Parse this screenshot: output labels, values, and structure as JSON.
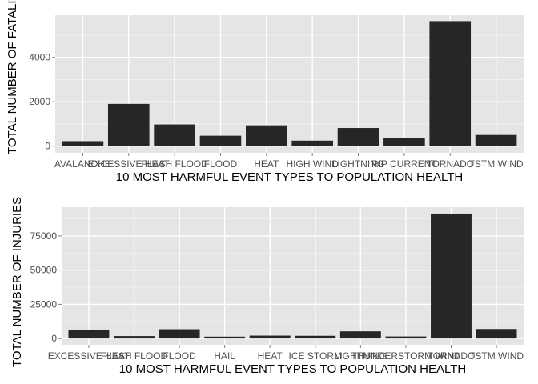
{
  "colors": {
    "panel": "#e5e5e5",
    "grid_major": "#ffffff",
    "grid_minor": "#f2f2f2",
    "bar": "#262626",
    "tick": "#7f7f7f"
  },
  "chart_data": [
    {
      "type": "bar",
      "title": "",
      "xlabel": "10 MOST HARMFUL EVENT TYPES TO POPULATION HEALTH",
      "ylabel": "TOTAL NUMBER OF FATALITIES",
      "categories": [
        "AVALANCHE",
        "EXCESSIVE HEAT",
        "FLASH FLOOD",
        "FLOOD",
        "HEAT",
        "HIGH WIND",
        "LIGHTNING",
        "RIP CURRENT",
        "TORNADO",
        "TSTM WIND"
      ],
      "values": [
        224,
        1903,
        978,
        470,
        937,
        248,
        816,
        368,
        5633,
        504
      ],
      "ylim": [
        -300,
        5900
      ],
      "yticks": [
        0,
        2000,
        4000
      ],
      "ytick_labels": [
        "0",
        "2000",
        "4000"
      ],
      "grid": true,
      "legend": "none"
    },
    {
      "type": "bar",
      "title": "",
      "xlabel": "10 MOST HARMFUL EVENT TYPES TO POPULATION HEALTH",
      "ylabel": "TOTAL NUMBER OF INJURIES",
      "categories": [
        "EXCESSIVE HEAT",
        "FLASH FLOOD",
        "FLOOD",
        "HAIL",
        "HEAT",
        "ICE STORM",
        "LIGHTNING",
        "THUNDERSTORM WIND",
        "TORNADO",
        "TSTM WIND"
      ],
      "values": [
        6525,
        1777,
        6789,
        1361,
        2100,
        1975,
        5230,
        1488,
        91346,
        6957
      ],
      "ylim": [
        -4600,
        96000
      ],
      "yticks": [
        0,
        25000,
        50000,
        75000
      ],
      "ytick_labels": [
        "0",
        "25000",
        "50000",
        "75000"
      ],
      "grid": true,
      "legend": "none"
    }
  ]
}
